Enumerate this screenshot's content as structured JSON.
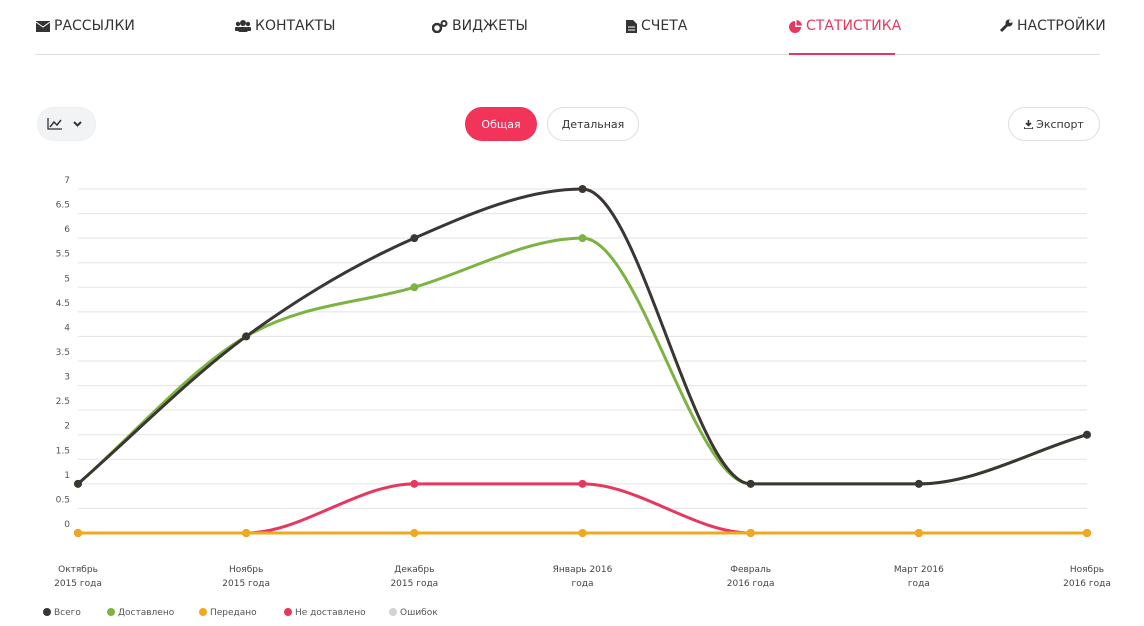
{
  "nav": [
    {
      "label": "РАССЫЛКИ"
    },
    {
      "label": "КОНТАКТЫ"
    },
    {
      "label": "ВИДЖЕТЫ"
    },
    {
      "label": "СЧЕТА"
    },
    {
      "label": "СТАТИСТИКА",
      "active": true
    },
    {
      "label": "НАСТРОЙКИ"
    }
  ],
  "toolbar": {
    "tabs": [
      {
        "label": "Общая",
        "active": true
      },
      {
        "label": "Детальная"
      }
    ],
    "export": "Экспорт"
  },
  "chart_data": {
    "type": "line",
    "categories": [
      "Октябрь 2015 года",
      "Ноябрь 2015 года",
      "Декабрь 2015 года",
      "Январь 2016 года",
      "Февраль 2016 года",
      "Март 2016 года",
      "Ноябрь 2016 года"
    ],
    "series": [
      {
        "name": "Всего",
        "color": "#3a3634",
        "values": [
          1,
          4,
          6,
          7,
          1,
          1,
          2
        ]
      },
      {
        "name": "Доставлено",
        "color": "#7cb342",
        "values": [
          1,
          4,
          5,
          6,
          1,
          1,
          2
        ]
      },
      {
        "name": "Передано",
        "color": "#f2a81d",
        "values": [
          0,
          0,
          0,
          0,
          0,
          0,
          0
        ]
      },
      {
        "name": "Не доставлено",
        "color": "#e8375e",
        "values": [
          0,
          0,
          1,
          1,
          0,
          0,
          0
        ]
      },
      {
        "name": "Ошибок",
        "color": "#d3d3d3",
        "values": [
          0,
          0,
          0,
          0,
          0,
          0,
          0
        ]
      }
    ],
    "ylim": [
      0,
      7
    ],
    "yticks": [
      0,
      0.5,
      1,
      1.5,
      2,
      2.5,
      3,
      3.5,
      4,
      4.5,
      5,
      5.5,
      6,
      6.5,
      7
    ],
    "grid": true
  }
}
